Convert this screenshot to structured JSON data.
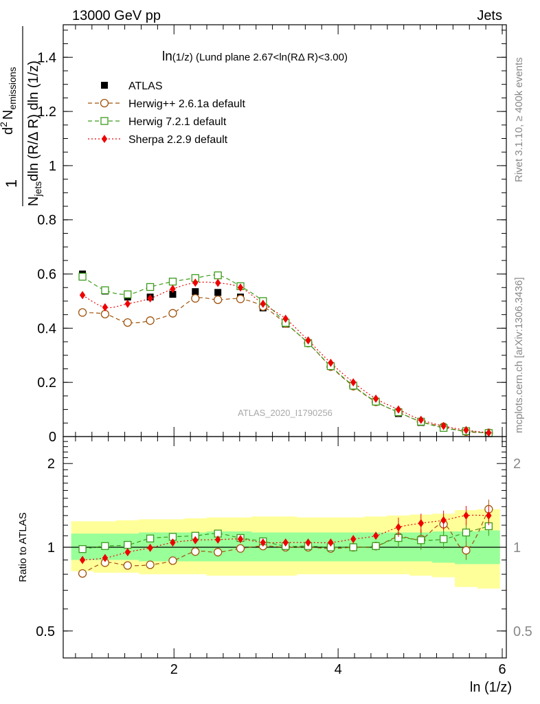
{
  "header": {
    "left": "13000 GeV pp",
    "right": "Jets"
  },
  "side_labels": {
    "rivet": "Rivet 3.1.10, ≥ 400k events",
    "mcplots": "mcplots.cern.ch [arXiv:1306.3436]"
  },
  "watermark": "ATLAS_2020_I1790256",
  "colors": {
    "atlas": "#000000",
    "herwigpp": "#a0520a",
    "herwig7": "#3a9a1a",
    "sherpa": "#ee0000",
    "band_inner": "#99ff99",
    "band_outer": "#ffff99"
  },
  "chart_data": [
    {
      "type": "scatter",
      "title": "ln(1/z) (Lund plane 2.67<ln(RΔ R)<3.00)",
      "title_main": "ln",
      "title_sub": "(1/z)",
      "title_rest": " (Lund plane 2.67<ln(RΔ R)<3.00)",
      "xlabel": "ln (1/z)",
      "ylabel": "1 / N_jets dln (R/Δ R) dln (1/z) · d² N_emissions",
      "ylabel_parts": {
        "one": "1",
        "njets": "N",
        "jets_sub": "jets",
        "denom_rest": "dln (R/Δ R) dln (1/z)",
        "d2": "d",
        "sup2": "2",
        "nem": "N",
        "em_sub": "emissions"
      },
      "xlim": [
        0.65,
        6.05
      ],
      "ylim": [
        0,
        1.52
      ],
      "x_ticks": [
        2,
        4,
        6
      ],
      "x_tick_labels": [
        "2",
        "4",
        "6"
      ],
      "y_ticks": [
        0,
        0.2,
        0.4,
        0.6,
        0.8,
        1,
        1.2,
        1.4
      ],
      "y_tick_labels": [
        "0",
        "0.2",
        "0.4",
        "0.6",
        "0.8",
        "1",
        "1.2",
        "1.4"
      ],
      "x": [
        0.885,
        1.16,
        1.435,
        1.71,
        1.985,
        2.26,
        2.535,
        2.81,
        3.085,
        3.36,
        3.635,
        3.91,
        4.185,
        4.46,
        4.735,
        5.01,
        5.285,
        5.56,
        5.835
      ],
      "series": [
        {
          "name": "ATLAS",
          "marker": "square-filled",
          "values": [
            0.6,
            0.537,
            0.515,
            0.515,
            0.525,
            0.535,
            0.532,
            0.515,
            0.475,
            0.415,
            0.345,
            0.26,
            0.187,
            0.128,
            0.085,
            0.052,
            0.031,
            0.018,
            0.011
          ]
        },
        {
          "name": "Herwig++ 2.6.1a default",
          "marker": "circle-open",
          "dash": "dashed",
          "values": [
            0.458,
            0.452,
            0.421,
            0.428,
            0.455,
            0.51,
            0.505,
            0.508,
            0.48,
            0.417,
            0.345,
            0.258,
            0.186,
            0.128,
            0.09,
            0.055,
            0.036,
            0.018,
            0.014
          ]
        },
        {
          "name": "Herwig 7.2.1 default",
          "marker": "square-open",
          "dash": "dashed",
          "values": [
            0.59,
            0.54,
            0.525,
            0.552,
            0.572,
            0.585,
            0.595,
            0.555,
            0.5,
            0.42,
            0.345,
            0.26,
            0.188,
            0.129,
            0.09,
            0.055,
            0.032,
            0.02,
            0.013
          ]
        },
        {
          "name": "Sherpa 2.2.9 default",
          "marker": "diamond-filled",
          "dash": "dotted",
          "values": [
            0.522,
            0.477,
            0.49,
            0.51,
            0.545,
            0.568,
            0.567,
            0.55,
            0.49,
            0.435,
            0.355,
            0.272,
            0.2,
            0.14,
            0.1,
            0.062,
            0.039,
            0.024,
            0.014
          ]
        }
      ]
    },
    {
      "type": "scatter",
      "title": "Ratio to ATLAS",
      "ylabel": "Ratio to ATLAS",
      "xlim": [
        0.65,
        6.05
      ],
      "ylim": [
        0.4,
        2.5
      ],
      "log_y": true,
      "x_ticks": [
        2,
        4,
        6
      ],
      "y_ticks": [
        0.5,
        1,
        2
      ],
      "y_tick_labels": [
        "0.5",
        "1",
        "2"
      ],
      "band_inner": {
        "lo": [
          0.9,
          0.9,
          0.9,
          0.89,
          0.89,
          0.89,
          0.89,
          0.89,
          0.89,
          0.89,
          0.89,
          0.89,
          0.89,
          0.89,
          0.89,
          0.89,
          0.88,
          0.87,
          0.87
        ],
        "hi": [
          1.12,
          1.12,
          1.12,
          1.13,
          1.13,
          1.13,
          1.14,
          1.14,
          1.13,
          1.13,
          1.13,
          1.13,
          1.13,
          1.13,
          1.13,
          1.13,
          1.14,
          1.14,
          1.15
        ]
      },
      "band_outer": {
        "lo": [
          0.82,
          0.81,
          0.81,
          0.8,
          0.8,
          0.8,
          0.79,
          0.79,
          0.79,
          0.79,
          0.8,
          0.8,
          0.8,
          0.8,
          0.8,
          0.79,
          0.78,
          0.72,
          0.71
        ],
        "hi": [
          1.24,
          1.24,
          1.25,
          1.26,
          1.26,
          1.27,
          1.28,
          1.28,
          1.29,
          1.29,
          1.28,
          1.28,
          1.28,
          1.29,
          1.3,
          1.31,
          1.32,
          1.36,
          1.37
        ]
      },
      "series": [
        {
          "name": "Herwig++ 2.6.1a default",
          "values": [
            0.805,
            0.88,
            0.86,
            0.865,
            0.895,
            0.965,
            0.96,
            0.99,
            1.01,
            1.0,
            1.0,
            0.99,
            1.0,
            1.01,
            1.09,
            1.07,
            1.21,
            0.975,
            1.37
          ]
        },
        {
          "name": "Herwig 7.2.1 default",
          "values": [
            0.985,
            1.01,
            1.02,
            1.075,
            1.09,
            1.1,
            1.12,
            1.08,
            1.05,
            1.01,
            1.01,
            1.0,
            1.0,
            1.01,
            1.08,
            1.06,
            1.07,
            1.13,
            1.19
          ]
        },
        {
          "name": "Sherpa 2.2.9 default",
          "values": [
            0.9,
            0.915,
            0.96,
            0.995,
            1.04,
            1.06,
            1.065,
            1.07,
            1.04,
            1.04,
            1.04,
            1.04,
            1.07,
            1.1,
            1.18,
            1.22,
            1.25,
            1.3,
            1.3
          ]
        }
      ]
    }
  ]
}
